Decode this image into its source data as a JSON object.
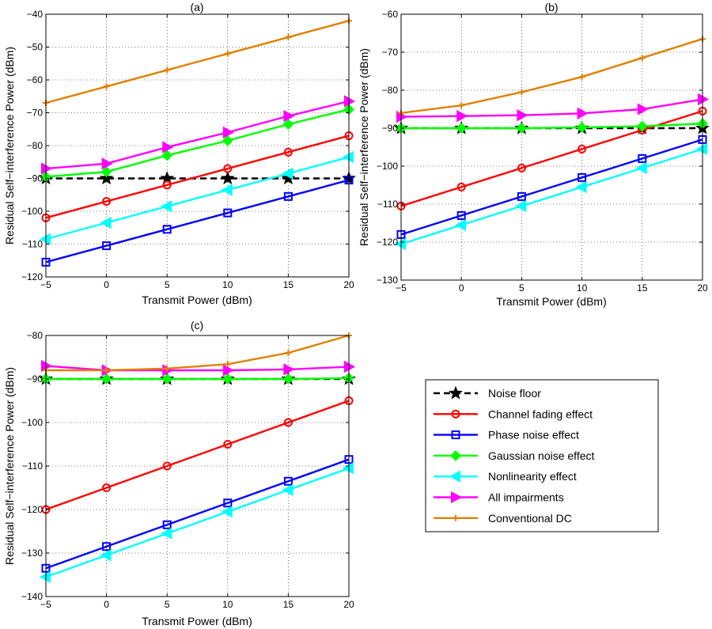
{
  "figure": {
    "background": "#ffffff"
  },
  "series_styles": [
    {
      "name": "Noise floor",
      "color": "#000000",
      "marker": "star",
      "dash": true
    },
    {
      "name": "Channel fading effect",
      "color": "#ff0000",
      "marker": "circle",
      "dash": false
    },
    {
      "name": "Phase noise effect",
      "color": "#0000ff",
      "marker": "square",
      "dash": false
    },
    {
      "name": "Gaussian noise effect",
      "color": "#00ff00",
      "marker": "diamond",
      "dash": false
    },
    {
      "name": "Nonlinearity effect",
      "color": "#00ffff",
      "marker": "triangle-left",
      "dash": false
    },
    {
      "name": "All impairments",
      "color": "#ff00ff",
      "marker": "triangle-right",
      "dash": false
    },
    {
      "name": "Conventional DC",
      "color": "#e08000",
      "marker": "plus",
      "dash": false
    }
  ],
  "legend": {
    "placement": "right of panel (c)",
    "entries": [
      "Noise floor",
      "Channel fading effect",
      "Phase noise effect",
      "Gaussian noise effect",
      "Nonlinearity effect",
      "All impairments",
      "Conventional DC"
    ]
  },
  "chart_data": [
    {
      "panel": "(a)",
      "type": "line",
      "title": "(a)",
      "xlabel": "Transmit Power (dBm)",
      "ylabel": "Residual Self−interference Power (dBm)",
      "xlim": [
        -5,
        20
      ],
      "ylim": [
        -120,
        -40
      ],
      "xticks": [
        -5,
        0,
        5,
        10,
        15,
        20
      ],
      "yticks": [
        -120,
        -110,
        -100,
        -90,
        -80,
        -70,
        -60,
        -50,
        -40
      ],
      "xtick_labels": [
        "−5",
        "0",
        "5",
        "10",
        "15",
        "20"
      ],
      "ytick_labels": [
        "−120",
        "−110",
        "−100",
        "−90",
        "−80",
        "−70",
        "−60",
        "−50",
        "−40"
      ],
      "grid": true,
      "x": [
        -5,
        0,
        5,
        10,
        15,
        20
      ],
      "series": [
        {
          "name": "Noise floor",
          "values": [
            -90,
            -90,
            -90,
            -90,
            -90,
            -90
          ]
        },
        {
          "name": "Channel fading effect",
          "values": [
            -102,
            -97,
            -92,
            -87,
            -82,
            -77
          ]
        },
        {
          "name": "Phase noise effect",
          "values": [
            -115.5,
            -110.5,
            -105.5,
            -100.5,
            -95.5,
            -90.5
          ]
        },
        {
          "name": "Gaussian noise effect",
          "values": [
            -89.5,
            -88,
            -83,
            -78.5,
            -73.5,
            -69
          ]
        },
        {
          "name": "Nonlinearity effect",
          "values": [
            -108.5,
            -103.5,
            -98.5,
            -93.5,
            -88.5,
            -83.5
          ]
        },
        {
          "name": "All impairments",
          "values": [
            -87,
            -85.5,
            -80.5,
            -76,
            -71,
            -66.5
          ]
        },
        {
          "name": "Conventional DC",
          "values": [
            -67,
            -62,
            -57,
            -52,
            -47,
            -42
          ]
        }
      ]
    },
    {
      "panel": "(b)",
      "type": "line",
      "title": "(b)",
      "xlabel": "Transmit Power (dBm)",
      "ylabel": "Residual Self−interference Power (dBm)",
      "xlim": [
        -5,
        20
      ],
      "ylim": [
        -130,
        -60
      ],
      "xticks": [
        -5,
        0,
        5,
        10,
        15,
        20
      ],
      "yticks": [
        -130,
        -120,
        -110,
        -100,
        -90,
        -80,
        -70,
        -60
      ],
      "xtick_labels": [
        "−5",
        "0",
        "5",
        "10",
        "15",
        "20"
      ],
      "ytick_labels": [
        "−130",
        "−120",
        "−110",
        "−100",
        "−90",
        "−80",
        "−70",
        "−60"
      ],
      "grid": true,
      "x": [
        -5,
        0,
        5,
        10,
        15,
        20
      ],
      "series": [
        {
          "name": "Noise floor",
          "values": [
            -90,
            -90,
            -90,
            -90,
            -90,
            -90
          ]
        },
        {
          "name": "Channel fading effect",
          "values": [
            -110.5,
            -105.5,
            -100.5,
            -95.5,
            -90.5,
            -85.5
          ]
        },
        {
          "name": "Phase noise effect",
          "values": [
            -118,
            -113,
            -108,
            -103,
            -98,
            -93
          ]
        },
        {
          "name": "Gaussian noise effect",
          "values": [
            -90,
            -90,
            -90,
            -89.8,
            -89.5,
            -88.8
          ]
        },
        {
          "name": "Nonlinearity effect",
          "values": [
            -120.5,
            -115.5,
            -110.5,
            -105.5,
            -100.5,
            -95.5
          ]
        },
        {
          "name": "All impairments",
          "values": [
            -87,
            -86.8,
            -86.6,
            -86.1,
            -85,
            -82.4
          ]
        },
        {
          "name": "Conventional DC",
          "values": [
            -86,
            -84,
            -80.5,
            -76.5,
            -71.5,
            -66.5
          ]
        }
      ]
    },
    {
      "panel": "(c)",
      "type": "line",
      "title": "(c)",
      "xlabel": "Transmit Power (dBm)",
      "ylabel": "Residual Self−interference Power (dBm)",
      "xlim": [
        -5,
        20
      ],
      "ylim": [
        -140,
        -80
      ],
      "xticks": [
        -5,
        0,
        5,
        10,
        15,
        20
      ],
      "yticks": [
        -140,
        -130,
        -120,
        -110,
        -100,
        -90,
        -80
      ],
      "xtick_labels": [
        "−5",
        "0",
        "5",
        "10",
        "15",
        "20"
      ],
      "ytick_labels": [
        "−140",
        "−130",
        "−120",
        "−110",
        "−100",
        "−90",
        "−80"
      ],
      "grid": true,
      "x": [
        -5,
        0,
        5,
        10,
        15,
        20
      ],
      "series": [
        {
          "name": "Noise floor",
          "values": [
            -90,
            -90,
            -90,
            -90,
            -90,
            -90
          ]
        },
        {
          "name": "Channel fading effect",
          "values": [
            -120,
            -115,
            -110,
            -105,
            -100,
            -95
          ]
        },
        {
          "name": "Phase noise effect",
          "values": [
            -133.5,
            -128.5,
            -123.5,
            -118.5,
            -113.5,
            -108.5
          ]
        },
        {
          "name": "Gaussian noise effect",
          "values": [
            -90,
            -90,
            -90,
            -90,
            -90,
            -89.8
          ]
        },
        {
          "name": "Nonlinearity effect",
          "values": [
            -135.5,
            -130.5,
            -125.5,
            -120.5,
            -115.5,
            -110.5
          ]
        },
        {
          "name": "All impairments",
          "values": [
            -87,
            -88,
            -88,
            -88,
            -87.8,
            -87.2
          ]
        },
        {
          "name": "Conventional DC",
          "values": [
            -88,
            -88,
            -87.6,
            -86.6,
            -84,
            -80
          ]
        }
      ]
    }
  ]
}
